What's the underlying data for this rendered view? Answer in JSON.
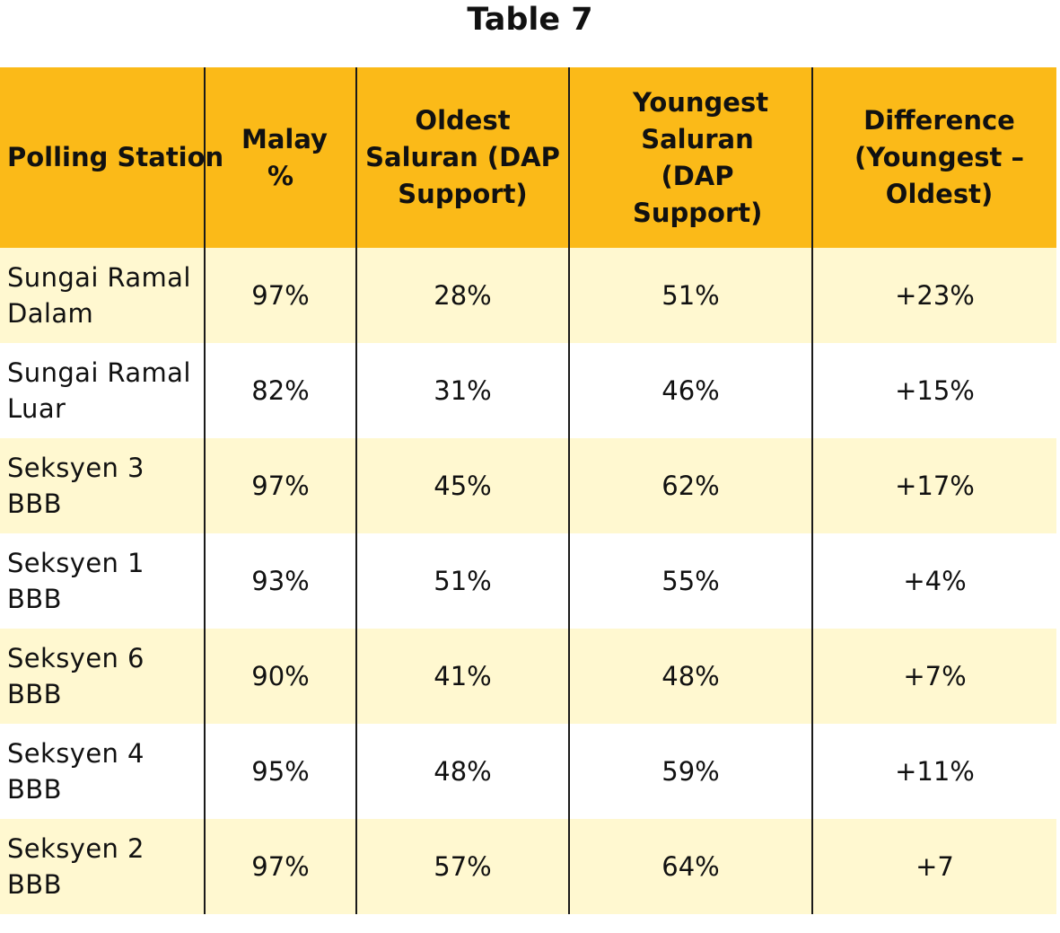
{
  "title": "Table 7",
  "columns": [
    "Polling Station",
    "Malay %",
    "Oldest Saluran (DAP Support)",
    "Youngest Saluran (DAP Support)",
    "Difference (Youngest – Oldest)"
  ],
  "rows": [
    [
      "Sungai Ramal Dalam",
      "97%",
      "28%",
      "51%",
      "+23%"
    ],
    [
      "Sungai Ramal Luar",
      "82%",
      "31%",
      "46%",
      "+15%"
    ],
    [
      "Seksyen 3 BBB",
      "97%",
      "45%",
      "62%",
      "+17%"
    ],
    [
      "Seksyen 1 BBB",
      "93%",
      "51%",
      "55%",
      "+4%"
    ],
    [
      "Seksyen 6 BBB",
      "90%",
      "41%",
      "48%",
      "+7%"
    ],
    [
      "Seksyen 4 BBB",
      "95%",
      "48%",
      "59%",
      "+11%"
    ],
    [
      "Seksyen 2 BBB",
      "97%",
      "57%",
      "64%",
      "+7"
    ]
  ],
  "colors": {
    "header_bg": "#FBBA18",
    "row_odd_bg": "#FFF8D0",
    "row_even_bg": "#FFFFFF",
    "column_divider": "#1a1a1a"
  }
}
